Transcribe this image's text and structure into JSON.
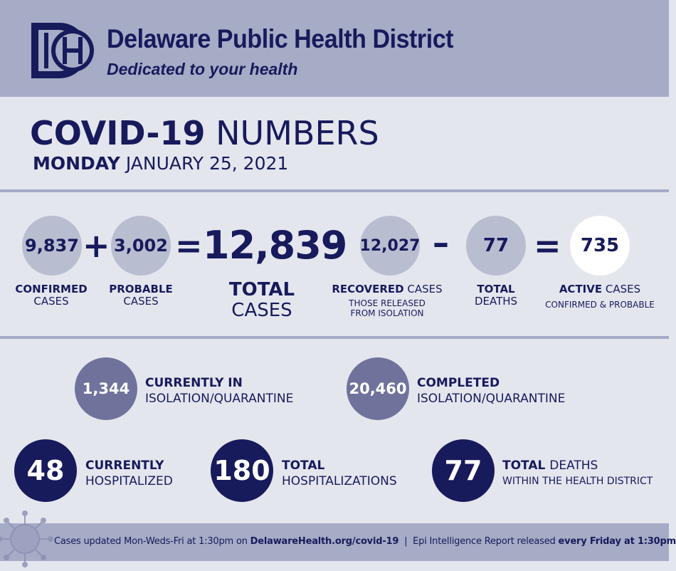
{
  "header": {
    "org_name": "Delaware Public Health District",
    "tagline": "Dedicated to your health",
    "logo_icon": "dh-logo-icon"
  },
  "title": {
    "bold": "COVID-19",
    "light": "NUMBERS",
    "day": "MONDAY",
    "date": "JANUARY 25, 2021"
  },
  "equation": {
    "confirmed": {
      "value": "9,837",
      "label_bold": "CONFIRMED",
      "label": "CASES"
    },
    "plus": "+",
    "probable": {
      "value": "3,002",
      "label_bold": "PROBABLE",
      "label": "CASES"
    },
    "equals1": "=",
    "total": {
      "value": "12,839",
      "label_bold": "TOTAL",
      "label": "CASES"
    },
    "minus1": "–",
    "recovered": {
      "value": "12,027",
      "label_bold": "RECOVERED",
      "label": "CASES",
      "note1": "THOSE RELEASED",
      "note2": "FROM ISOLATION"
    },
    "minus2": "–",
    "deaths": {
      "value": "77",
      "label_bold": "TOTAL",
      "label": "DEATHS"
    },
    "equals2": "=",
    "active": {
      "value": "735",
      "label_bold": "ACTIVE",
      "label": "CASES",
      "note": "CONFIRMED & PROBABLE"
    }
  },
  "stats": {
    "isolation_current": {
      "value": "1,344",
      "top": "CURRENTLY IN",
      "bottom": "ISOLATION/QUARANTINE"
    },
    "isolation_completed": {
      "value": "20,460",
      "top": "COMPLETED",
      "bottom": "ISOLATION/QUARANTINE"
    },
    "hospitalized": {
      "value": "48",
      "top": "CURRENTLY",
      "bottom": "HOSPITALIZED"
    },
    "hospitalizations": {
      "value": "180",
      "top": "TOTAL",
      "bottom": "HOSPITALIZATIONS"
    },
    "total_deaths": {
      "value": "77",
      "top_bold": "TOTAL",
      "top_light": "DEATHS",
      "bottom": "WITHIN THE HEALTH DISTRICT"
    }
  },
  "footer": {
    "text1": "Cases updated Mon-Weds-Fri at 1:30pm on ",
    "link": "DelawareHealth.org/covid-19",
    "sep": "  |  ",
    "text2": "Epi Intelligence Report released ",
    "bold_end": "every Friday at 1:30pm",
    "virus_icon": "virus-icon"
  },
  "colors": {
    "navy": "#171a5b",
    "band": "#a6abc6",
    "background": "#e4e6ee",
    "gray_circle": "#b9bdd0",
    "mid_circle": "#6f739c"
  }
}
